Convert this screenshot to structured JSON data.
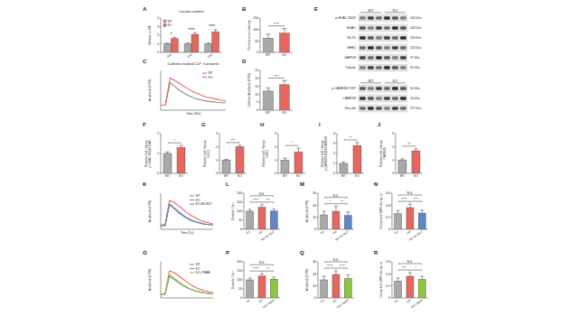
{
  "chart_data": [
    {
      "panel": "A",
      "type": "bar",
      "title": "Lactate content",
      "y_label": "Relative to WT",
      "categories": [
        "D30",
        "D40",
        "D50"
      ],
      "series": [
        {
          "name": "WT",
          "color": "#a9a9a9",
          "values": [
            1,
            1,
            1
          ],
          "errors": [
            0.08,
            0.1,
            0.09
          ]
        },
        {
          "name": "KO",
          "color": "#e5675f",
          "values": [
            1.6,
            2.1,
            2.4
          ],
          "errors": [
            0.15,
            0.2,
            0.25
          ]
        }
      ],
      "ylim": [
        0,
        4
      ],
      "yticks": [
        0,
        1,
        2,
        3,
        4
      ],
      "legend": "top-left",
      "annotations": [
        {
          "text": "*",
          "category": 0
        },
        {
          "text": "****",
          "category": 1
        },
        {
          "text": "****",
          "category": 2
        }
      ]
    },
    {
      "panel": "B",
      "type": "bar",
      "y_label": "Fluorescence intensity",
      "categories": [
        "WT",
        "KO"
      ],
      "values": [
        62,
        84
      ],
      "errors": [
        18,
        20
      ],
      "colors": [
        "#a9a9a9",
        "#e5675f"
      ],
      "ylim": [
        0,
        150
      ],
      "yticks": [
        0,
        50,
        100,
        150
      ],
      "annotations": [
        {
          "text": "****",
          "between": [
            0,
            1
          ]
        }
      ]
    },
    {
      "panel": "C",
      "type": "line",
      "title": "Caffeine-evoked Ca²⁺ transients",
      "y_label": "Amplitude (F/F0)",
      "x_label": "Time (10s)",
      "x": [
        0,
        1,
        2,
        3,
        4,
        5,
        6,
        7,
        8,
        9,
        10,
        11,
        12,
        13,
        14
      ],
      "xlim": [
        0,
        14
      ],
      "ylim": [
        0,
        8
      ],
      "tick_labels": false,
      "legend": "top-right",
      "series": [
        {
          "name": "WT",
          "color": "#8c8c8c",
          "values": [
            1,
            1,
            5.5,
            4.8,
            4.0,
            3.4,
            2.9,
            2.5,
            2.2,
            2.0,
            1.8,
            1.7,
            1.6,
            1.5,
            1.5
          ]
        },
        {
          "name": "KO",
          "color": "#e5675f",
          "values": [
            1,
            1,
            6.5,
            6.0,
            5.4,
            4.8,
            4.2,
            3.7,
            3.3,
            2.9,
            2.6,
            2.4,
            2.2,
            2.0,
            1.9
          ]
        }
      ]
    },
    {
      "panel": "D",
      "type": "bar",
      "y_label": "Caffeine Amplitude (F/F0)",
      "categories": [
        "WT",
        "KO"
      ],
      "values": [
        12,
        16
      ],
      "errors": [
        2,
        2.5
      ],
      "colors": [
        "#a9a9a9",
        "#e5675f"
      ],
      "ylim": [
        0,
        25
      ],
      "yticks": [
        0,
        5,
        10,
        15,
        20,
        25
      ],
      "annotations": [
        {
          "text": "***",
          "between": [
            0,
            1
          ]
        }
      ]
    },
    {
      "panel": "F",
      "type": "bar",
      "y_label": [
        "Relative fold change",
        "p-HDAC S632/HDAC"
      ],
      "categories": [
        "WT",
        "KO"
      ],
      "values": [
        1,
        1.3
      ],
      "errors": [
        0.08,
        0.1
      ],
      "colors": [
        "#a9a9a9",
        "#e5675f"
      ],
      "ylim": [
        0,
        2
      ],
      "yticks": [
        0,
        1,
        2
      ],
      "annotations": [
        {
          "text": "*",
          "between": [
            0,
            1
          ]
        }
      ]
    },
    {
      "panel": "G",
      "type": "bar",
      "y_label": [
        "Relative fold change",
        "NCX1"
      ],
      "categories": [
        "WT",
        "KO"
      ],
      "values": [
        1,
        2.0
      ],
      "errors": [
        0.05,
        0.12
      ],
      "colors": [
        "#a9a9a9",
        "#e5675f"
      ],
      "ylim": [
        0,
        3
      ],
      "yticks": [
        0,
        1,
        2,
        3
      ],
      "annotations": [
        {
          "text": "***",
          "between": [
            0,
            1
          ]
        }
      ]
    },
    {
      "panel": "H",
      "type": "bar",
      "y_label": [
        "Relative fold change",
        "NHE1"
      ],
      "categories": [
        "WT",
        "KO"
      ],
      "values": [
        1,
        1.6
      ],
      "errors": [
        0.15,
        0.3
      ],
      "colors": [
        "#a9a9a9",
        "#e5675f"
      ],
      "ylim": [
        0,
        3
      ],
      "yticks": [
        0,
        1,
        2,
        3
      ],
      "annotations": [
        {
          "text": "*",
          "between": [
            0,
            1
          ]
        }
      ]
    },
    {
      "panel": "I",
      "type": "bar",
      "y_label": [
        "Relative fold change",
        "p-CAMKIIδ T287/CAMKIIδ"
      ],
      "categories": [
        "WT",
        "KO"
      ],
      "values": [
        1,
        2.8
      ],
      "errors": [
        0.15,
        0.3
      ],
      "colors": [
        "#a9a9a9",
        "#e5675f"
      ],
      "ylim": [
        0,
        4
      ],
      "yticks": [
        0,
        1,
        2,
        3,
        4
      ],
      "annotations": [
        {
          "text": "**",
          "between": [
            0,
            1
          ]
        }
      ]
    },
    {
      "panel": "J",
      "type": "bar",
      "y_label": [
        "Relative fold change",
        "CAMKIIδ"
      ],
      "categories": [
        "WT",
        "KO"
      ],
      "values": [
        1,
        1.7
      ],
      "errors": [
        0.1,
        0.15
      ],
      "colors": [
        "#a9a9a9",
        "#e5675f"
      ],
      "ylim": [
        0,
        3
      ],
      "yticks": [
        0,
        1,
        2,
        3
      ],
      "annotations": [
        {
          "text": "**",
          "between": [
            0,
            1
          ]
        }
      ]
    },
    {
      "panel": "K",
      "type": "line",
      "y_label": "Amplitude (F/F0)",
      "x_label": "Time (1s)",
      "x": [
        0,
        1,
        2,
        3,
        4,
        5,
        6,
        7,
        8,
        9,
        10,
        11,
        12
      ],
      "xlim": [
        0,
        12
      ],
      "ylim": [
        0,
        10
      ],
      "tick_labels": false,
      "legend": "top-right",
      "series": [
        {
          "name": "WT",
          "color": "#8c8c8c",
          "values": [
            1,
            1,
            7,
            6,
            5,
            4,
            3.2,
            2.6,
            2.1,
            1.8,
            1.5,
            1.3,
            1.2
          ]
        },
        {
          "name": "KO",
          "color": "#e5675f",
          "values": [
            1.2,
            1.3,
            8,
            7.5,
            6.6,
            5.6,
            4.6,
            3.8,
            3.1,
            2.5,
            2.1,
            1.8,
            1.5
          ]
        },
        {
          "name": "KO+BI-9627",
          "color": "#5f86c6",
          "values": [
            1,
            1,
            6.8,
            5.8,
            4.7,
            3.8,
            3,
            2.4,
            2,
            1.7,
            1.4,
            1.3,
            1.2
          ]
        }
      ]
    },
    {
      "panel": "L",
      "type": "bar",
      "y_label": "Diastolic Ca²⁺",
      "categories": [
        "WT",
        "KO",
        "KO+BI-9627"
      ],
      "values": [
        100,
        122,
        101
      ],
      "errors": [
        10,
        14,
        11
      ],
      "colors": [
        "#a9a9a9",
        "#e5675f",
        "#5f86c6"
      ],
      "ylim": [
        0,
        200
      ],
      "yticks": [
        0,
        50,
        100,
        150,
        200
      ],
      "annotations": [
        {
          "text": "****",
          "between": [
            0,
            1
          ]
        },
        {
          "text": "***",
          "between": [
            1,
            2
          ]
        },
        {
          "text": "N.S.",
          "between": [
            0,
            2
          ]
        }
      ]
    },
    {
      "panel": "M",
      "type": "bar",
      "y_label": "Amplitude (F/F0)",
      "categories": [
        "WT",
        "KO",
        "KO+BI-9627"
      ],
      "values": [
        12,
        15,
        11.5
      ],
      "errors": [
        3,
        4,
        3
      ],
      "colors": [
        "#a9a9a9",
        "#e5675f",
        "#5f86c6"
      ],
      "ylim": [
        0,
        30
      ],
      "yticks": [
        0,
        10,
        20,
        30
      ],
      "annotations": [
        {
          "text": "*",
          "between": [
            0,
            1
          ]
        },
        {
          "text": "**",
          "between": [
            1,
            2
          ]
        },
        {
          "text": "N.S.",
          "between": [
            0,
            2
          ]
        }
      ]
    },
    {
      "panel": "N",
      "type": "bar",
      "y_label": "Decay time (90% decay, s)",
      "categories": [
        "WT",
        "KO",
        "KO+BI-9627"
      ],
      "values": [
        0.26,
        0.36,
        0.27
      ],
      "errors": [
        0.05,
        0.06,
        0.05
      ],
      "colors": [
        "#a9a9a9",
        "#e5675f",
        "#5f86c6"
      ],
      "ylim": [
        0,
        0.6
      ],
      "yticks": [
        0,
        0.2,
        0.4,
        0.6
      ],
      "annotations": [
        {
          "text": "****",
          "between": [
            0,
            1
          ]
        },
        {
          "text": "***",
          "between": [
            1,
            2
          ]
        },
        {
          "text": "N.S.",
          "between": [
            0,
            2
          ]
        }
      ]
    },
    {
      "panel": "O",
      "type": "line",
      "y_label": "Amplitude (F/F0)",
      "x": [
        0,
        1,
        2,
        3,
        4,
        5,
        6,
        7,
        8,
        9,
        10,
        11,
        12
      ],
      "xlim": [
        0,
        12
      ],
      "ylim": [
        0,
        10
      ],
      "tick_labels": false,
      "legend": "top-right",
      "series": [
        {
          "name": "WT",
          "color": "#8c8c8c",
          "values": [
            1,
            1,
            6,
            5.2,
            4.3,
            3.5,
            2.8,
            2.3,
            1.9,
            1.6,
            1.4,
            1.2,
            1.1
          ]
        },
        {
          "name": "KO",
          "color": "#e5675f",
          "values": [
            1.1,
            1.2,
            7.5,
            7,
            6.2,
            5.3,
            4.4,
            3.6,
            2.9,
            2.4,
            2,
            1.7,
            1.5
          ]
        },
        {
          "name": "KO+TMAB",
          "color": "#8dc63f",
          "values": [
            1,
            1,
            6.4,
            5.6,
            4.6,
            3.7,
            3,
            2.4,
            2,
            1.7,
            1.4,
            1.3,
            1.2
          ]
        }
      ]
    },
    {
      "panel": "P",
      "type": "bar",
      "y_label": "Diastolic Ca²⁺",
      "categories": [
        "WT",
        "KO",
        "KO+TMAB"
      ],
      "values": [
        100,
        121,
        104
      ],
      "errors": [
        10,
        13,
        11
      ],
      "colors": [
        "#a9a9a9",
        "#e5675f",
        "#8dc63f"
      ],
      "ylim": [
        0,
        200
      ],
      "yticks": [
        0,
        50,
        100,
        150,
        200
      ],
      "annotations": [
        {
          "text": "****",
          "between": [
            0,
            1
          ]
        },
        {
          "text": "**",
          "between": [
            1,
            2
          ]
        },
        {
          "text": "N.S.",
          "between": [
            0,
            2
          ]
        }
      ]
    },
    {
      "panel": "Q",
      "type": "bar",
      "y_label": "Amplitude (F/F0)",
      "categories": [
        "WT",
        "KO",
        "KO+TMAB"
      ],
      "values": [
        15,
        19.5,
        16
      ],
      "errors": [
        3,
        3,
        3
      ],
      "colors": [
        "#a9a9a9",
        "#e5675f",
        "#8dc63f"
      ],
      "ylim": [
        0,
        30
      ],
      "yticks": [
        0,
        10,
        20,
        30
      ],
      "annotations": [
        {
          "text": "****",
          "between": [
            0,
            1
          ]
        },
        {
          "text": "****",
          "between": [
            1,
            2
          ]
        },
        {
          "text": "N.S.",
          "between": [
            0,
            2
          ]
        }
      ]
    },
    {
      "panel": "R",
      "type": "bar",
      "y_label": "Decay time (90% decay, s)",
      "categories": [
        "WT",
        "KO",
        "KO+TMAB"
      ],
      "values": [
        0.28,
        0.36,
        0.31
      ],
      "errors": [
        0.05,
        0.06,
        0.05
      ],
      "colors": [
        "#a9a9a9",
        "#e5675f",
        "#8dc63f"
      ],
      "ylim": [
        0,
        0.6
      ],
      "yticks": [
        0,
        0.2,
        0.4,
        0.6
      ],
      "annotations": [
        {
          "text": "***",
          "between": [
            0,
            1
          ]
        },
        {
          "text": "*",
          "between": [
            1,
            2
          ]
        },
        {
          "text": "N.S.",
          "between": [
            0,
            2
          ]
        }
      ]
    }
  ],
  "blot": {
    "panel": "E",
    "groups": [
      {
        "lanes": [
          "WT",
          "KO"
        ],
        "rows": [
          {
            "label": "p-HDAC S632",
            "kda": "140 kDa"
          },
          {
            "label": "HDAC",
            "kda": "140 kDa"
          },
          {
            "label": "NCX1",
            "kda": "110 kDa"
          },
          {
            "label": "NHE1",
            "kda": "110 kDa"
          },
          {
            "label": "GAPDH",
            "kda": "37 kDa"
          },
          {
            "label": "Tubulin",
            "kda": "55 kDa"
          }
        ]
      },
      {
        "lanes": [
          "WT",
          "KO"
        ],
        "rows": [
          {
            "label": "p-CAMKIIδ T287",
            "kda": "50 kDa"
          },
          {
            "label": "CAMKIIδ",
            "kda": "50 kDa"
          },
          {
            "label": "Vinculin",
            "kda": "117 kDa"
          }
        ]
      }
    ]
  }
}
